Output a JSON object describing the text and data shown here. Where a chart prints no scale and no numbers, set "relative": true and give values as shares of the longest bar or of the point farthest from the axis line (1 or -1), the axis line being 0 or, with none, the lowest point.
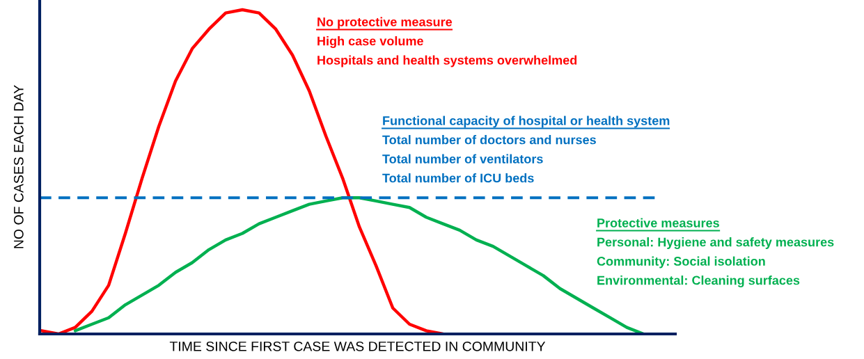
{
  "chart_data": {
    "type": "line",
    "relative": true,
    "xlabel": "TIME SINCE FIRST CASE WAS DETECTED IN COMMUNITY",
    "ylabel": "NO OF CASES EACH DAY",
    "categories": [
      null,
      null,
      null,
      null,
      null,
      null,
      null,
      null,
      null,
      null,
      null,
      null,
      null,
      null,
      null,
      null,
      null,
      null,
      null,
      null,
      null,
      null,
      null,
      null,
      null,
      null,
      null,
      null,
      null,
      null,
      null,
      null,
      null,
      null,
      null,
      null,
      null
    ],
    "series": [
      {
        "name": "No protective measure",
        "color": "#ff0000",
        "values": [
          0.01,
          0.0,
          0.02,
          0.07,
          0.15,
          0.31,
          0.48,
          0.64,
          0.78,
          0.88,
          0.94,
          0.99,
          1.0,
          0.99,
          0.94,
          0.86,
          0.75,
          0.61,
          0.48,
          0.33,
          0.21,
          0.08,
          0.03,
          0.01,
          0.0,
          null,
          null,
          null,
          null,
          null,
          null,
          null,
          null,
          null,
          null,
          null,
          null
        ]
      },
      {
        "name": "Protective measures",
        "color": "#00b050",
        "values": [
          null,
          null,
          0.01,
          0.03,
          0.05,
          0.09,
          0.12,
          0.15,
          0.19,
          0.22,
          0.26,
          0.29,
          0.31,
          0.34,
          0.36,
          0.38,
          0.4,
          0.41,
          0.42,
          0.42,
          0.41,
          0.4,
          0.39,
          0.36,
          0.34,
          0.32,
          0.29,
          0.27,
          0.24,
          0.21,
          0.18,
          0.14,
          0.11,
          0.08,
          0.05,
          0.02,
          0.0
        ]
      }
    ],
    "ref_lines": [
      {
        "axis": "y",
        "value": 0.42,
        "label": "Functional capacity of hospital or health system",
        "color": "#0070c0",
        "line_style": "dashed"
      }
    ],
    "annotations": [
      "High case volume",
      "Hospitals and health systems overwhelmed",
      "Total number of doctors and nurses",
      "Total number of ventilators",
      "Total number of ICU beds",
      "Personal: Hygiene and safety measures",
      "Community: Social isolation",
      "Environmental: Cleaning surfaces"
    ]
  }
}
